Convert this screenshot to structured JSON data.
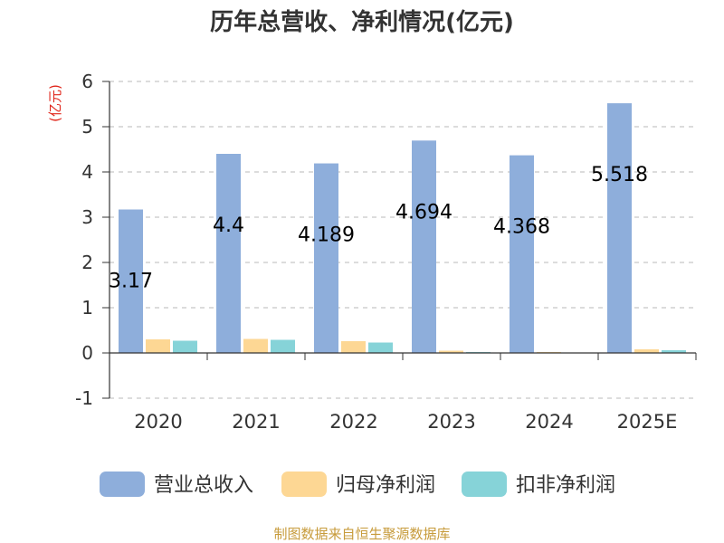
{
  "chart_data": {
    "type": "bar",
    "title": "历年总营收、净利情况(亿元)",
    "ylabel": "(亿元)",
    "categories": [
      "2020",
      "2021",
      "2022",
      "2023",
      "2024",
      "2025E"
    ],
    "ylim": [
      -1,
      6
    ],
    "yticks": [
      "-1",
      "0",
      "1",
      "2",
      "3",
      "4",
      "5",
      "6"
    ],
    "grid": true,
    "legend_position": "bottom",
    "series": [
      {
        "name": "营业总收入",
        "color": "#8eaedb",
        "values": [
          3.17,
          4.4,
          4.189,
          4.694,
          4.368,
          5.518
        ],
        "labels": [
          "3.17",
          "4.4",
          "4.189",
          "4.694",
          "4.368",
          "5.518"
        ]
      },
      {
        "name": "归母净利润",
        "color": "#fdd794",
        "values": [
          0.3,
          0.31,
          0.26,
          0.05,
          0.02,
          0.08
        ]
      },
      {
        "name": "扣非净利润",
        "color": "#86d3d8",
        "values": [
          0.27,
          0.29,
          0.23,
          0.02,
          0.01,
          0.06
        ]
      }
    ]
  },
  "source": "制图数据来自恒生聚源数据库"
}
